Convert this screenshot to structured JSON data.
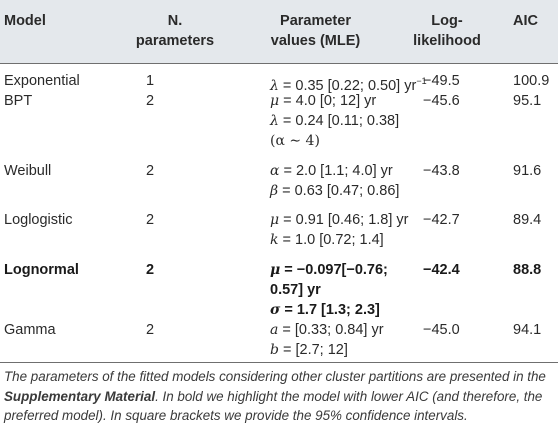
{
  "header": {
    "model": "Model",
    "n_params_1": "N.",
    "n_params_2": "parameters",
    "param_1": "Parameter",
    "param_2": "values (MLE)",
    "ll_1": "Log-",
    "ll_2": "likelihood",
    "aic": "AIC"
  },
  "rows": [
    {
      "model": "Exponential",
      "n": "1",
      "params": [
        {
          "sym": "λ",
          "rest": " = 0.35 [0.22; 0.50] yr",
          "sup": "−1"
        }
      ],
      "ll": "−49.5",
      "aic": "100.9"
    },
    {
      "model": "BPT",
      "n": "2",
      "params": [
        {
          "sym": "μ",
          "rest": " = 4.0 [0; 12] yr"
        },
        {
          "sym": "λ",
          "rest": " = 0.24 [0.11; 0.38]"
        },
        {
          "text": "(α ∼ 4)"
        }
      ],
      "ll": "−45.6",
      "aic": "95.1"
    },
    {
      "model": "Weibull",
      "n": "2",
      "params": [
        {
          "sym": "α",
          "rest": " = 2.0 [1.1; 4.0] yr"
        },
        {
          "sym": "β",
          "rest": " = 0.63 [0.47; 0.86]"
        }
      ],
      "ll": "−43.8",
      "aic": "91.6"
    },
    {
      "model": "Loglogistic",
      "n": "2",
      "params": [
        {
          "sym": "μ",
          "rest": " = 0.91 [0.46; 1.8] yr"
        },
        {
          "sym": "k",
          "rest": " = 1.0 [0.72; 1.4]"
        }
      ],
      "ll": "−42.7",
      "aic": "89.4"
    },
    {
      "model": "Lognormal",
      "n": "2",
      "params": [
        {
          "sym": "μ",
          "rest": " = −0.097[−0.76;"
        },
        {
          "text": "0.57] yr"
        },
        {
          "sym": "σ",
          "rest": " = 1.7 [1.3; 2.3]"
        }
      ],
      "ll": "−42.4",
      "aic": "88.8"
    },
    {
      "model": "Gamma",
      "n": "2",
      "params": [
        {
          "sym": "a",
          "rest": " = [0.33; 0.84] yr"
        },
        {
          "sym": "b",
          "rest": " = [2.7; 12]"
        }
      ],
      "ll": "−45.0",
      "aic": "94.1"
    }
  ],
  "footnote": {
    "part1": "The parameters of the fitted models considering other cluster partitions are presented in the ",
    "link": "Supplementary Material",
    "part2": ". In bold we highlight the model with lower AIC (and therefore, the preferred model). In square brackets we provide the 95% confidence intervals."
  }
}
